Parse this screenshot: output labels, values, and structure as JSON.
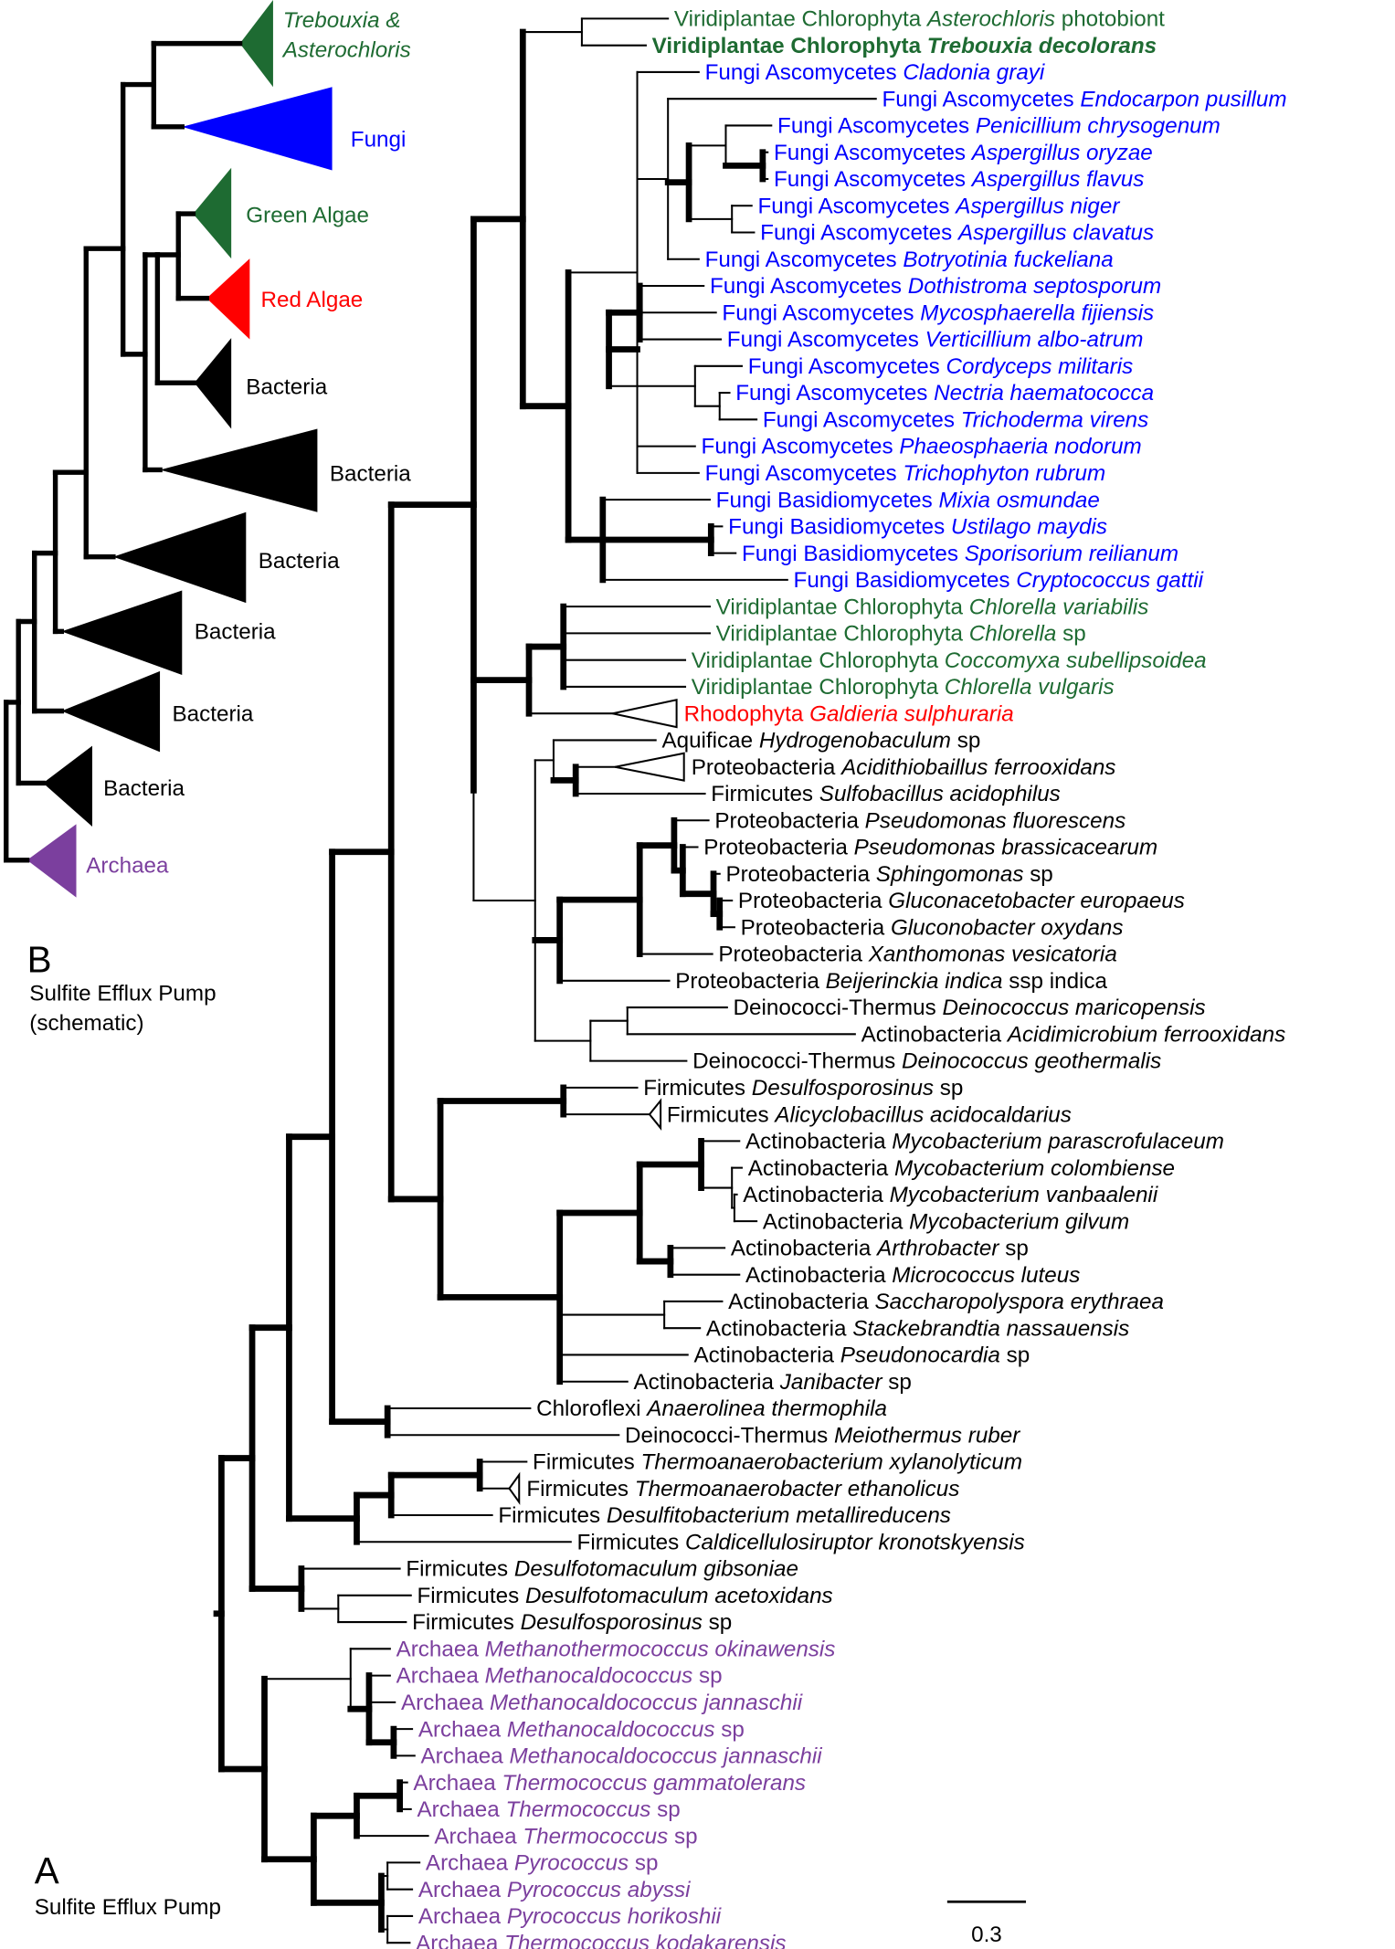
{
  "panel_a": {
    "letter": "A",
    "caption": "Sulfite Efflux Pump",
    "scale_bar": "0.3",
    "leaves": [
      {
        "group": "Viridiplantae Chlorophyta",
        "species": "Asterochloris",
        "suffix": "photobiont",
        "color": "#1e6b32"
      },
      {
        "group": "Viridiplantae Chlorophyta",
        "species": "Trebouxia decolorans",
        "color": "#1e6b32",
        "bold": true
      },
      {
        "group": "Fungi Ascomycetes",
        "species": "Cladonia grayi",
        "color": "#0000ff"
      },
      {
        "group": "Fungi Ascomycetes",
        "species": "Endocarpon pusillum",
        "color": "#0000ff"
      },
      {
        "group": "Fungi Ascomycetes",
        "species": "Penicillium chrysogenum",
        "color": "#0000ff"
      },
      {
        "group": "Fungi Ascomycetes",
        "species": "Aspergillus oryzae",
        "color": "#0000ff"
      },
      {
        "group": "Fungi Ascomycetes",
        "species": "Aspergillus flavus",
        "color": "#0000ff"
      },
      {
        "group": "Fungi Ascomycetes",
        "species": "Aspergillus niger",
        "color": "#0000ff"
      },
      {
        "group": "Fungi Ascomycetes",
        "species": "Aspergillus clavatus",
        "color": "#0000ff"
      },
      {
        "group": "Fungi Ascomycetes",
        "species": "Botryotinia fuckeliana",
        "color": "#0000ff"
      },
      {
        "group": "Fungi Ascomycetes",
        "species": "Dothistroma septosporum",
        "color": "#0000ff"
      },
      {
        "group": "Fungi Ascomycetes",
        "species": "Mycosphaerella fijiensis",
        "color": "#0000ff"
      },
      {
        "group": "Fungi Ascomycetes",
        "species": "Verticillium albo-atrum",
        "color": "#0000ff"
      },
      {
        "group": "Fungi Ascomycetes",
        "species": "Cordyceps militaris",
        "color": "#0000ff"
      },
      {
        "group": "Fungi Ascomycetes",
        "species": "Nectria haematococca",
        "color": "#0000ff"
      },
      {
        "group": "Fungi Ascomycetes",
        "species": "Trichoderma virens",
        "color": "#0000ff"
      },
      {
        "group": "Fungi Ascomycetes",
        "species": "Phaeosphaeria nodorum",
        "color": "#0000ff"
      },
      {
        "group": "Fungi Ascomycetes",
        "species": "Trichophyton rubrum",
        "color": "#0000ff"
      },
      {
        "group": "Fungi Basidiomycetes",
        "species": "Mixia osmundae",
        "color": "#0000ff"
      },
      {
        "group": "Fungi Basidiomycetes",
        "species": "Ustilago maydis",
        "color": "#0000ff"
      },
      {
        "group": "Fungi Basidiomycetes",
        "species": "Sporisorium reilianum",
        "color": "#0000ff"
      },
      {
        "group": "Fungi Basidiomycetes",
        "species": "Cryptococcus gattii",
        "color": "#0000ff"
      },
      {
        "group": "Viridiplantae Chlorophyta",
        "species": "Chlorella variabilis",
        "color": "#1e6b32"
      },
      {
        "group": "Viridiplantae Chlorophyta",
        "species": "Chlorella",
        "suffix": "sp",
        "color": "#1e6b32"
      },
      {
        "group": "Viridiplantae Chlorophyta",
        "species": "Coccomyxa subellipsoidea",
        "color": "#1e6b32"
      },
      {
        "group": "Viridiplantae Chlorophyta",
        "species": "Chlorella vulgaris",
        "color": "#1e6b32"
      },
      {
        "group": "Rhodophyta",
        "species": "Galdieria sulphuraria",
        "color": "#ff0000"
      },
      {
        "group": "Aquificae",
        "species": "Hydrogenobaculum",
        "suffix": "sp",
        "color": "#000000"
      },
      {
        "group": "Proteobacteria",
        "species": "Acidithiobaillus ferrooxidans",
        "color": "#000000"
      },
      {
        "group": "Firmicutes",
        "species": "Sulfobacillus acidophilus",
        "color": "#000000"
      },
      {
        "group": "Proteobacteria",
        "species": "Pseudomonas fluorescens",
        "color": "#000000"
      },
      {
        "group": "Proteobacteria",
        "species": "Pseudomonas brassicacearum",
        "color": "#000000"
      },
      {
        "group": "Proteobacteria",
        "species": "Sphingomonas",
        "suffix": "sp",
        "color": "#000000"
      },
      {
        "group": "Proteobacteria",
        "species": "Gluconacetobacter europaeus",
        "color": "#000000"
      },
      {
        "group": "Proteobacteria",
        "species": "Gluconobacter oxydans",
        "color": "#000000"
      },
      {
        "group": "Proteobacteria",
        "species": "Xanthomonas vesicatoria",
        "color": "#000000"
      },
      {
        "group": "Proteobacteria",
        "species": "Beijerinckia indica",
        "suffix": "ssp indica",
        "color": "#000000"
      },
      {
        "group": "Deinococci-Thermus",
        "species": "Deinococcus maricopensis",
        "color": "#000000"
      },
      {
        "group": "Actinobacteria",
        "species": "Acidimicrobium ferrooxidans",
        "color": "#000000"
      },
      {
        "group": "Deinococci-Thermus",
        "species": "Deinococcus geothermalis",
        "color": "#000000"
      },
      {
        "group": "Firmicutes",
        "species": "Desulfosporosinus",
        "suffix": "sp",
        "color": "#000000"
      },
      {
        "group": "Firmicutes",
        "species": "Alicyclobacillus acidocaldarius",
        "color": "#000000"
      },
      {
        "group": "Actinobacteria",
        "species": "Mycobacterium parascrofulaceum",
        "color": "#000000"
      },
      {
        "group": "Actinobacteria",
        "species": "Mycobacterium colombiense",
        "color": "#000000"
      },
      {
        "group": "Actinobacteria",
        "species": "Mycobacterium vanbaalenii",
        "color": "#000000"
      },
      {
        "group": "Actinobacteria",
        "species": "Mycobacterium gilvum",
        "color": "#000000"
      },
      {
        "group": "Actinobacteria",
        "species": "Arthrobacter",
        "suffix": "sp",
        "color": "#000000"
      },
      {
        "group": "Actinobacteria",
        "species": "Micrococcus luteus",
        "color": "#000000"
      },
      {
        "group": "Actinobacteria",
        "species": "Saccharopolyspora erythraea",
        "color": "#000000"
      },
      {
        "group": "Actinobacteria",
        "species": "Stackebrandtia nassauensis",
        "color": "#000000"
      },
      {
        "group": "Actinobacteria",
        "species": "Pseudonocardia",
        "suffix": "sp",
        "color": "#000000"
      },
      {
        "group": "Actinobacteria",
        "species": "Janibacter",
        "suffix": "sp",
        "color": "#000000"
      },
      {
        "group": "Chloroflexi",
        "species": "Anaerolinea thermophila",
        "color": "#000000"
      },
      {
        "group": "Deinococci-Thermus",
        "species": "Meiothermus ruber",
        "color": "#000000"
      },
      {
        "group": "Firmicutes",
        "species": "Thermoanaerobacterium xylanolyticum",
        "color": "#000000"
      },
      {
        "group": "Firmicutes",
        "species": "Thermoanaerobacter ethanolicus",
        "color": "#000000"
      },
      {
        "group": "Firmicutes",
        "species": "Desulfitobacterium metallireducens",
        "color": "#000000"
      },
      {
        "group": "Firmicutes",
        "species": "Caldicellulosiruptor kronotskyensis",
        "color": "#000000"
      },
      {
        "group": "Firmicutes",
        "species": "Desulfotomaculum gibsoniae",
        "color": "#000000"
      },
      {
        "group": "Firmicutes",
        "species": "Desulfotomaculum acetoxidans",
        "color": "#000000"
      },
      {
        "group": "Firmicutes",
        "species": "Desulfosporosinus",
        "suffix": "sp",
        "color": "#000000"
      },
      {
        "group": "Archaea",
        "species": "Methanothermococcus okinawensis",
        "color": "#7b3f9e"
      },
      {
        "group": "Archaea",
        "species": "Methanocaldococcus",
        "suffix": "sp",
        "color": "#7b3f9e"
      },
      {
        "group": "Archaea",
        "species": "Methanocaldococcus jannaschii",
        "color": "#7b3f9e"
      },
      {
        "group": "Archaea",
        "species": "Methanocaldococcus",
        "suffix": "sp",
        "color": "#7b3f9e"
      },
      {
        "group": "Archaea",
        "species": "Methanocaldococcus jannaschii",
        "color": "#7b3f9e"
      },
      {
        "group": "Archaea",
        "species": "Thermococcus gammatolerans",
        "color": "#7b3f9e"
      },
      {
        "group": "Archaea",
        "species": "Thermococcus",
        "suffix": "sp",
        "color": "#7b3f9e"
      },
      {
        "group": "Archaea",
        "species": "Thermococcus",
        "suffix": "sp",
        "color": "#7b3f9e"
      },
      {
        "group": "Archaea",
        "species": "Pyrococcus",
        "suffix": "sp",
        "color": "#7b3f9e"
      },
      {
        "group": "Archaea",
        "species": "Pyrococcus abyssi",
        "color": "#7b3f9e"
      },
      {
        "group": "Archaea",
        "species": "Pyrococcus horikoshii",
        "color": "#7b3f9e"
      },
      {
        "group": "Archaea",
        "species": "Thermococcus kodakarensis",
        "color": "#7b3f9e"
      }
    ]
  },
  "panel_b": {
    "letter": "B",
    "caption": [
      "Sulfite Efflux Pump",
      "(schematic)"
    ],
    "clades": [
      {
        "lines": [
          "Trebouxia &",
          "Asterochloris"
        ],
        "color": "#1e6b32",
        "label_color": "#1e6b32",
        "italic": true
      },
      {
        "lines": [
          "Fungi"
        ],
        "color": "#0000ff",
        "label_color": "#0000ff"
      },
      {
        "lines": [
          "Green Algae"
        ],
        "color": "#1e6b32",
        "label_color": "#1e6b32"
      },
      {
        "lines": [
          "Red Algae"
        ],
        "color": "#ff0000",
        "label_color": "#ff0000"
      },
      {
        "lines": [
          "Bacteria"
        ],
        "color": "#000000",
        "label_color": "#000000"
      },
      {
        "lines": [
          "Bacteria"
        ],
        "color": "#000000",
        "label_color": "#000000"
      },
      {
        "lines": [
          "Bacteria"
        ],
        "color": "#000000",
        "label_color": "#000000"
      },
      {
        "lines": [
          "Bacteria"
        ],
        "color": "#000000",
        "label_color": "#000000"
      },
      {
        "lines": [
          "Bacteria"
        ],
        "color": "#000000",
        "label_color": "#000000"
      },
      {
        "lines": [
          "Bacteria"
        ],
        "color": "#000000",
        "label_color": "#000000"
      },
      {
        "lines": [
          "Archaea"
        ],
        "color": "#7b3f9e",
        "label_color": "#7b3f9e"
      }
    ]
  }
}
